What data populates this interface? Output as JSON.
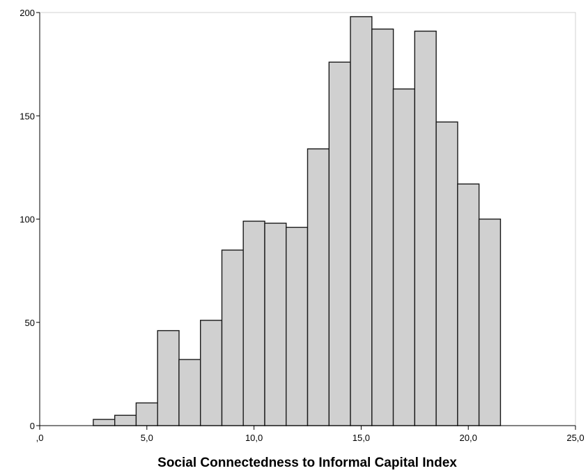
{
  "chart_data": {
    "type": "bar",
    "xlabel": "Social Connectedness to Informal Capital Index",
    "ylabel": "",
    "bin_width": 1.0,
    "bins": [
      {
        "x0": 2.5,
        "x1": 3.5,
        "count": 3
      },
      {
        "x0": 3.5,
        "x1": 4.5,
        "count": 5
      },
      {
        "x0": 4.5,
        "x1": 5.5,
        "count": 11
      },
      {
        "x0": 5.5,
        "x1": 6.5,
        "count": 46
      },
      {
        "x0": 6.5,
        "x1": 7.5,
        "count": 32
      },
      {
        "x0": 7.5,
        "x1": 8.5,
        "count": 51
      },
      {
        "x0": 8.5,
        "x1": 9.5,
        "count": 85
      },
      {
        "x0": 9.5,
        "x1": 10.5,
        "count": 99
      },
      {
        "x0": 10.5,
        "x1": 11.5,
        "count": 98
      },
      {
        "x0": 11.5,
        "x1": 12.5,
        "count": 96
      },
      {
        "x0": 12.5,
        "x1": 13.5,
        "count": 134
      },
      {
        "x0": 13.5,
        "x1": 14.5,
        "count": 176
      },
      {
        "x0": 14.5,
        "x1": 15.5,
        "count": 198
      },
      {
        "x0": 15.5,
        "x1": 16.5,
        "count": 192
      },
      {
        "x0": 16.5,
        "x1": 17.5,
        "count": 163
      },
      {
        "x0": 17.5,
        "x1": 18.5,
        "count": 191
      },
      {
        "x0": 18.5,
        "x1": 19.5,
        "count": 147
      },
      {
        "x0": 19.5,
        "x1": 20.5,
        "count": 117
      },
      {
        "x0": 20.5,
        "x1": 21.5,
        "count": 100
      }
    ],
    "xlim": [
      0,
      25
    ],
    "ylim": [
      0,
      200
    ],
    "x_ticks": [
      {
        "value": 0,
        "label": ",0"
      },
      {
        "value": 5,
        "label": "5,0"
      },
      {
        "value": 10,
        "label": "10,0"
      },
      {
        "value": 15,
        "label": "15,0"
      },
      {
        "value": 20,
        "label": "20,0"
      },
      {
        "value": 25,
        "label": "25,0"
      }
    ],
    "y_ticks": [
      {
        "value": 0,
        "label": "0"
      },
      {
        "value": 50,
        "label": "50"
      },
      {
        "value": 100,
        "label": "100"
      },
      {
        "value": 150,
        "label": "150"
      },
      {
        "value": 200,
        "label": "200"
      }
    ],
    "grid": false,
    "legend": "none",
    "colors": {
      "bar_fill": "#d0d0d0",
      "bar_stroke": "#1a1a1a",
      "frame": "#d0d0d0"
    }
  }
}
